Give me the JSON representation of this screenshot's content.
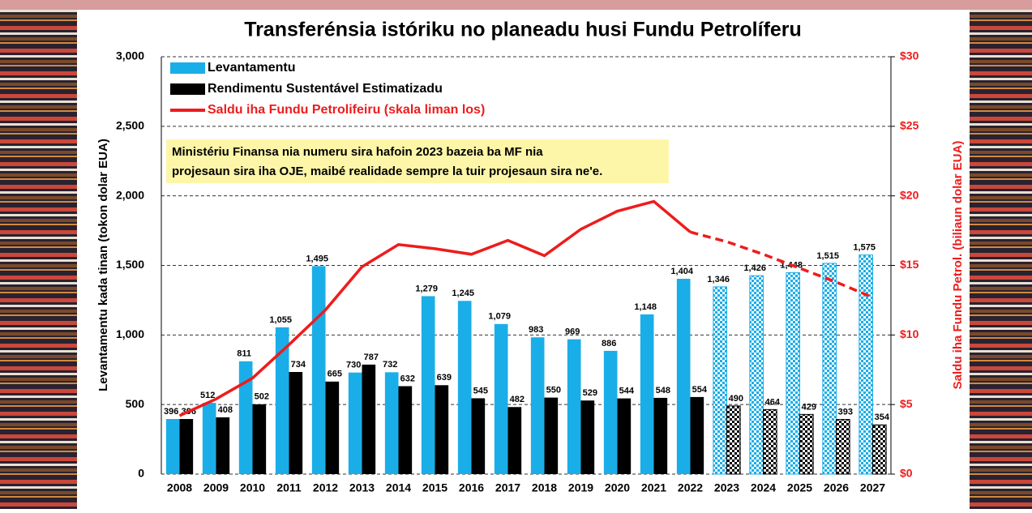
{
  "chart_data": {
    "type": "bar",
    "title": "Transferénsia istóriku no planeadu husi Fundu Petrolíferu",
    "ylabel": "Levantamentu kada tinan (tokon dolar EUA)",
    "y2label": "Saldu iha Fundu Petrol. (biliaun dolar EUA)",
    "annotation": [
      "Ministériu Finansa nia numeru sira hafoin 2023 bazeia ba MF nia",
      "projesaun sira iha OJE, maibé realidade sempre la tuir projesaun sira ne'e."
    ],
    "categories": [
      "2008",
      "2009",
      "2010",
      "2011",
      "2012",
      "2013",
      "2014",
      "2015",
      "2016",
      "2017",
      "2018",
      "2019",
      "2020",
      "2021",
      "2022",
      "2023",
      "2024",
      "2025",
      "2026",
      "2027"
    ],
    "projection_from": 15,
    "line_dashed_from": 14,
    "series": [
      {
        "name": "Levantamentu",
        "color": "#1aaee8",
        "values": [
          396,
          512,
          811,
          1055,
          1495,
          730,
          732,
          1279,
          1245,
          1079,
          983,
          969,
          886,
          1148,
          1404,
          1346,
          1426,
          1448,
          1515,
          1575
        ],
        "value_labels": [
          "396",
          "512",
          "811",
          "1,055",
          "1,495",
          "730",
          "732",
          "1,279",
          "1,245",
          "1,079",
          "983",
          "969",
          "886",
          "1,148",
          "1,404",
          "1,346",
          "1,426",
          "1,448",
          "1,515",
          "1,575"
        ]
      },
      {
        "name": "Rendimentu Sustentável Estimatizadu",
        "color": "#000000",
        "values": [
          396,
          408,
          502,
          734,
          665,
          787,
          632,
          639,
          545,
          482,
          550,
          529,
          544,
          548,
          554,
          490,
          464,
          429,
          393,
          354
        ]
      },
      {
        "name": "Saldu iha Fundu Petrolifeiru (skala liman los)",
        "color": "#ee1c1c",
        "type": "line",
        "axis": "y2",
        "values": [
          4.2,
          5.4,
          6.9,
          9.3,
          11.8,
          14.9,
          16.5,
          16.2,
          15.8,
          16.8,
          15.7,
          17.6,
          18.9,
          19.6,
          17.4,
          16.7,
          15.8,
          14.8,
          13.8,
          12.7
        ]
      }
    ],
    "ylim": [
      0,
      3000
    ],
    "yticks": [
      0,
      500,
      {
        "value": 1000,
        "label": "1,000"
      },
      {
        "value": 1500,
        "label": "1,500"
      },
      {
        "value": 2000,
        "label": "2,000"
      },
      {
        "value": 2500,
        "label": "2,500"
      },
      {
        "value": 3000,
        "label": "3,000"
      }
    ],
    "y2lim": [
      0,
      30
    ],
    "y2ticks": [
      {
        "value": 0,
        "label": "$0"
      },
      {
        "value": 5,
        "label": "$5"
      },
      {
        "value": 10,
        "label": "$10"
      },
      {
        "value": 15,
        "label": "$15"
      },
      {
        "value": 20,
        "label": "$20"
      },
      {
        "value": 25,
        "label": "$25"
      },
      {
        "value": 30,
        "label": "$30"
      }
    ],
    "grid": true
  }
}
